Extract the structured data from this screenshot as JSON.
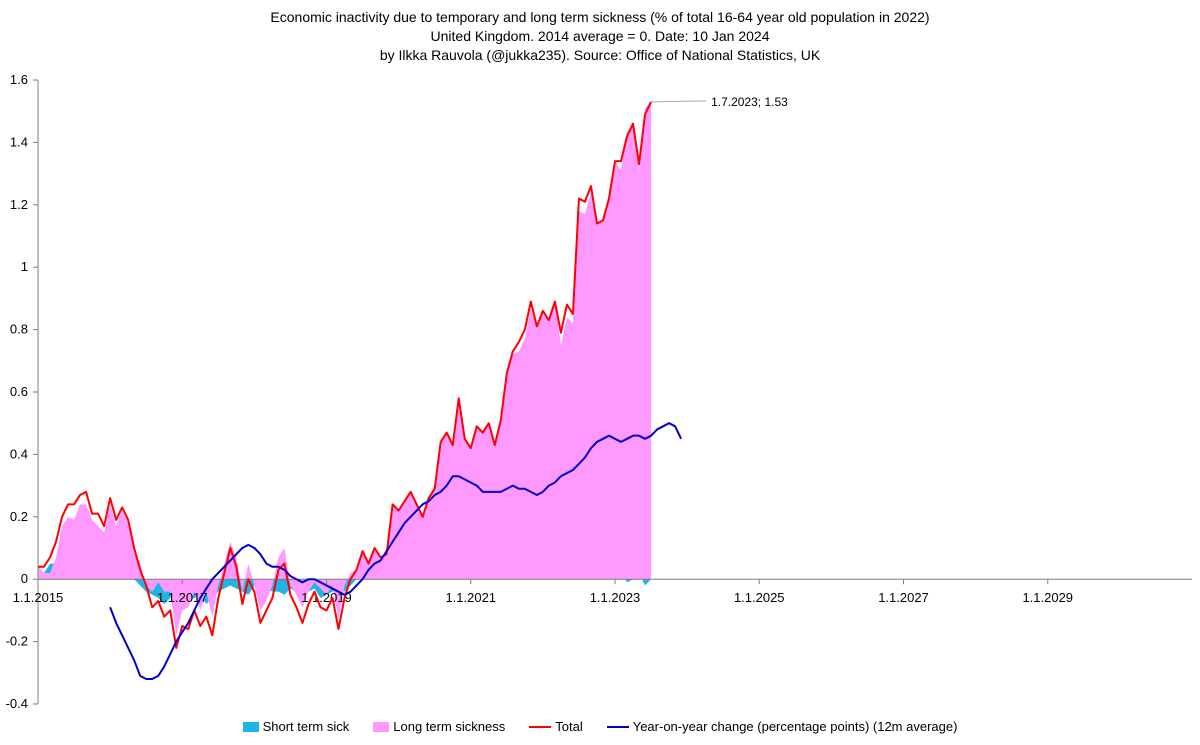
{
  "chart_data": {
    "type": "area",
    "title_lines": [
      "Economic inactivity due to temporary and long term sickness (% of total 16-64 year old population in 2022)",
      "United Kingdom. 2014 average = 0. Date: 10 Jan 2024",
      "by Ilkka Rauvola (@jukka235). Source: Office of National Statistics, UK"
    ],
    "colors": {
      "short_term": "#1fb4e6",
      "long_term": "#ff99ff",
      "total": "#ff0000",
      "yoy": "#0000cc"
    },
    "ylim": [
      -0.4,
      1.6
    ],
    "y_ticks": [
      -0.4,
      -0.2,
      0,
      0.2,
      0.4,
      0.6,
      0.8,
      1,
      1.2,
      1.4,
      1.6
    ],
    "y_tick_labels": [
      "-0.4",
      "-0.2",
      "0",
      "0.2",
      "0.4",
      "0.6",
      "0.8",
      "1",
      "1.2",
      "1.4",
      "1.6"
    ],
    "x_range": [
      "2015-01",
      "2030-12"
    ],
    "x_ticks": [
      "1.1.2015",
      "1.1.2017",
      "1.1.2019",
      "1.1.2021",
      "1.1.2023",
      "1.1.2025",
      "1.1.2027",
      "1.1.2029"
    ],
    "x_tick_years": [
      2015,
      2017,
      2019,
      2021,
      2023,
      2025,
      2027,
      2029
    ],
    "grid": false,
    "legend_position": "bottom",
    "annotation": {
      "text": "1.7.2023; 1.53",
      "x": "2023-07",
      "y": 1.53
    },
    "series": [
      {
        "name": "Total",
        "start": "2015-01",
        "values": [
          0.04,
          0.04,
          0.07,
          0.12,
          0.2,
          0.24,
          0.24,
          0.27,
          0.28,
          0.21,
          0.21,
          0.17,
          0.26,
          0.19,
          0.23,
          0.19,
          0.1,
          0.03,
          -0.02,
          -0.09,
          -0.07,
          -0.12,
          -0.1,
          -0.22,
          -0.15,
          -0.16,
          -0.1,
          -0.15,
          -0.12,
          -0.18,
          -0.06,
          0.02,
          0.1,
          0.04,
          -0.08,
          0.0,
          -0.04,
          -0.14,
          -0.1,
          -0.06,
          0.03,
          0.05,
          -0.05,
          -0.09,
          -0.14,
          -0.08,
          -0.04,
          -0.09,
          -0.1,
          -0.06,
          -0.16,
          -0.06,
          0.0,
          0.03,
          0.09,
          0.05,
          0.1,
          0.07,
          0.08,
          0.24,
          0.22,
          0.25,
          0.28,
          0.24,
          0.2,
          0.26,
          0.29,
          0.44,
          0.47,
          0.43,
          0.58,
          0.45,
          0.42,
          0.49,
          0.47,
          0.5,
          0.43,
          0.51,
          0.66,
          0.73,
          0.76,
          0.8,
          0.89,
          0.81,
          0.86,
          0.83,
          0.89,
          0.79,
          0.88,
          0.85,
          1.22,
          1.21,
          1.26,
          1.14,
          1.15,
          1.22,
          1.34,
          1.34,
          1.42,
          1.46,
          1.33,
          1.49,
          1.53
        ]
      },
      {
        "name": "Short term sick",
        "start": "2015-01",
        "values": [
          0.0,
          0.02,
          0.05,
          0.05,
          0.03,
          0.04,
          0.05,
          0.03,
          0.04,
          0.02,
          0.04,
          0.02,
          0.02,
          0.02,
          0.01,
          0.01,
          0.0,
          -0.02,
          -0.04,
          -0.05,
          -0.06,
          -0.08,
          -0.06,
          -0.04,
          -0.05,
          -0.07,
          -0.06,
          -0.05,
          -0.08,
          -0.06,
          -0.04,
          -0.03,
          -0.02,
          -0.03,
          -0.04,
          -0.05,
          -0.02,
          -0.04,
          -0.03,
          -0.04,
          -0.04,
          -0.05,
          -0.03,
          -0.04,
          -0.05,
          -0.04,
          -0.03,
          -0.06,
          -0.05,
          -0.04,
          -0.03,
          -0.04,
          -0.02,
          0.0,
          0.0,
          0.0,
          0.0,
          0.0,
          0.0,
          0.0,
          0.0,
          0.0,
          0.0,
          0.0,
          0.0,
          0.0,
          0.0,
          0.0,
          0.0,
          0.0,
          0.0,
          0.0,
          0.0,
          0.0,
          0.0,
          0.0,
          0.0,
          0.0,
          0.0,
          0.01,
          0.03,
          0.03,
          0.02,
          0.01,
          0.0,
          0.0,
          0.0,
          0.04,
          0.04,
          0.03,
          0.04,
          0.04,
          0.02,
          0.0,
          0.0,
          0.0,
          0.0,
          0.03,
          -0.01,
          0.0,
          0.02,
          -0.02,
          0.0
        ]
      },
      {
        "name": "Long term sickness",
        "start": "2015-01",
        "values": [
          0.04,
          0.02,
          0.02,
          0.07,
          0.17,
          0.2,
          0.19,
          0.24,
          0.24,
          0.19,
          0.17,
          0.15,
          0.24,
          0.17,
          0.22,
          0.18,
          0.1,
          0.05,
          -0.02,
          -0.04,
          -0.01,
          -0.04,
          -0.04,
          -0.18,
          -0.1,
          -0.09,
          -0.04,
          -0.1,
          -0.04,
          -0.12,
          -0.02,
          0.05,
          0.12,
          0.07,
          -0.04,
          0.05,
          -0.02,
          -0.1,
          -0.07,
          -0.02,
          0.07,
          0.1,
          -0.02,
          -0.05,
          -0.09,
          -0.04,
          -0.01,
          -0.03,
          -0.05,
          -0.02,
          -0.13,
          -0.02,
          0.02,
          0.03,
          0.09,
          0.05,
          0.1,
          0.07,
          0.08,
          0.24,
          0.22,
          0.25,
          0.28,
          0.24,
          0.2,
          0.26,
          0.29,
          0.44,
          0.47,
          0.43,
          0.58,
          0.45,
          0.42,
          0.49,
          0.47,
          0.5,
          0.43,
          0.51,
          0.66,
          0.72,
          0.73,
          0.77,
          0.87,
          0.8,
          0.86,
          0.83,
          0.89,
          0.75,
          0.84,
          0.82,
          1.18,
          1.17,
          1.24,
          1.14,
          1.15,
          1.22,
          1.34,
          1.31,
          1.43,
          1.46,
          1.31,
          1.51,
          1.53
        ]
      },
      {
        "name": "Year-on-year change (percentage points) (12m average)",
        "start": "2016-01",
        "values": [
          -0.09,
          -0.14,
          -0.18,
          -0.22,
          -0.26,
          -0.31,
          -0.32,
          -0.32,
          -0.31,
          -0.28,
          -0.24,
          -0.2,
          -0.17,
          -0.14,
          -0.1,
          -0.06,
          -0.03,
          0.0,
          0.02,
          0.04,
          0.06,
          0.08,
          0.1,
          0.11,
          0.1,
          0.08,
          0.05,
          0.04,
          0.04,
          0.03,
          0.01,
          0.0,
          -0.01,
          0.0,
          0.0,
          -0.01,
          -0.02,
          -0.03,
          -0.04,
          -0.05,
          -0.04,
          -0.02,
          0.0,
          0.03,
          0.05,
          0.06,
          0.09,
          0.12,
          0.15,
          0.18,
          0.2,
          0.22,
          0.24,
          0.25,
          0.27,
          0.28,
          0.3,
          0.33,
          0.33,
          0.32,
          0.31,
          0.3,
          0.28,
          0.28,
          0.28,
          0.28,
          0.29,
          0.3,
          0.29,
          0.29,
          0.28,
          0.27,
          0.28,
          0.3,
          0.31,
          0.33,
          0.34,
          0.35,
          0.37,
          0.39,
          0.42,
          0.44,
          0.45,
          0.46,
          0.45,
          0.44,
          0.45,
          0.46,
          0.46,
          0.45,
          0.46,
          0.48,
          0.49,
          0.5,
          0.49,
          0.45
        ]
      }
    ]
  }
}
